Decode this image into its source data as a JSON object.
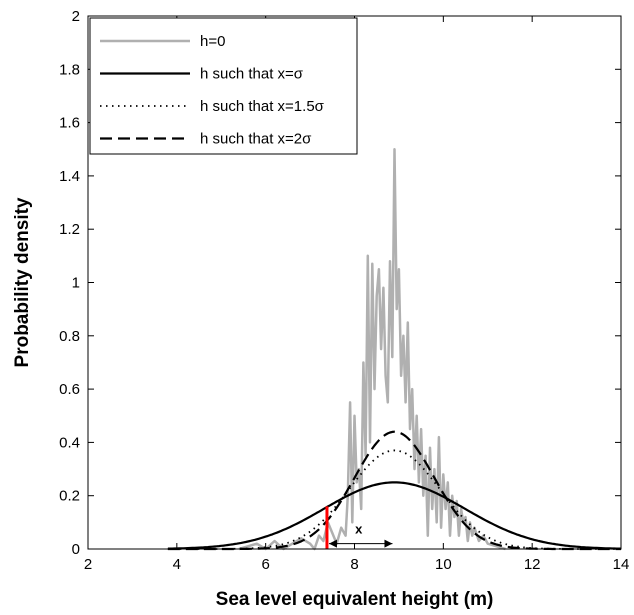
{
  "chart_data": {
    "type": "line",
    "title": "",
    "xlabel": "Sea level equivalent height (m)",
    "ylabel": "Probability density",
    "xlim": [
      2,
      14
    ],
    "ylim": [
      0,
      2
    ],
    "xticks": [
      2,
      4,
      6,
      8,
      10,
      12,
      14
    ],
    "yticks": [
      0,
      0.2,
      0.4,
      0.6,
      0.8,
      1,
      1.2,
      1.4,
      1.6,
      1.8,
      2
    ],
    "xtick_labels": [
      "2",
      "4",
      "6",
      "8",
      "10",
      "12",
      "14"
    ],
    "ytick_labels": [
      "0",
      "0.2",
      "0.4",
      "0.6",
      "0.8",
      "1",
      "1.2",
      "1.4",
      "1.6",
      "1.8",
      "2"
    ],
    "grid": false,
    "legend_position": "top-left",
    "series": [
      {
        "name": "h=0",
        "color": "#b0b0b0",
        "style": "solid",
        "x": [
          5.4,
          5.8,
          6.0,
          6.2,
          6.4,
          6.6,
          6.8,
          7.0,
          7.1,
          7.2,
          7.3,
          7.4,
          7.5,
          7.6,
          7.7,
          7.8,
          7.85,
          7.9,
          7.95,
          8.0,
          8.05,
          8.1,
          8.15,
          8.2,
          8.25,
          8.3,
          8.35,
          8.4,
          8.45,
          8.5,
          8.55,
          8.6,
          8.65,
          8.7,
          8.75,
          8.8,
          8.85,
          8.9,
          8.95,
          9.0,
          9.05,
          9.1,
          9.15,
          9.2,
          9.25,
          9.3,
          9.35,
          9.4,
          9.45,
          9.5,
          9.55,
          9.6,
          9.65,
          9.7,
          9.75,
          9.8,
          9.85,
          9.9,
          9.95,
          10.0,
          10.05,
          10.1,
          10.15,
          10.2,
          10.25,
          10.3,
          10.35,
          10.4,
          10.45,
          10.5,
          10.55,
          10.6,
          10.65,
          10.7,
          10.8,
          10.9,
          11.0,
          11.2,
          11.4
        ],
        "y": [
          0,
          0.02,
          0,
          0.03,
          0,
          0.02,
          0.04,
          0.02,
          0,
          0.05,
          0.03,
          0.1,
          0.06,
          0.02,
          0.08,
          0.05,
          0.2,
          0.55,
          0.1,
          0.5,
          0.25,
          0.3,
          0.15,
          0.7,
          0.35,
          1.1,
          0.4,
          1.07,
          0.6,
          0.95,
          1.05,
          0.75,
          0.98,
          0.65,
          0.55,
          1.08,
          0.72,
          1.5,
          0.9,
          1.05,
          0.65,
          0.8,
          0.55,
          0.85,
          0.45,
          0.6,
          0.3,
          0.5,
          0.25,
          0.45,
          0.2,
          0.35,
          0.05,
          0.38,
          0.15,
          0.3,
          0.1,
          0.42,
          0.08,
          0.28,
          0.15,
          0.25,
          0.05,
          0.2,
          0.12,
          0.18,
          0.05,
          0.15,
          0.1,
          0.12,
          0.03,
          0.1,
          0.05,
          0.08,
          0.03,
          0.05,
          0.02,
          0.01,
          0
        ]
      },
      {
        "name": "h such that x=σ",
        "color": "#000000",
        "style": "solid",
        "mean": 8.9,
        "sd": 1.58,
        "peak": 0.25
      },
      {
        "name": "h such that x=1.5σ",
        "color": "#000000",
        "style": "dotted",
        "mean": 8.9,
        "sd": 1.02,
        "peak": 0.37
      },
      {
        "name": "h such that x=2σ",
        "color": "#000000",
        "style": "dashed",
        "mean": 8.9,
        "sd": 0.9,
        "peak": 0.44
      }
    ],
    "annotations": [
      {
        "type": "vertical-line",
        "color": "#ff0000",
        "x": 7.38,
        "y0": 0,
        "y1": 0.16
      },
      {
        "type": "double-arrow",
        "color": "#000000",
        "x0": 7.38,
        "x1": 8.9,
        "y": 0.02,
        "label": "x"
      }
    ]
  }
}
